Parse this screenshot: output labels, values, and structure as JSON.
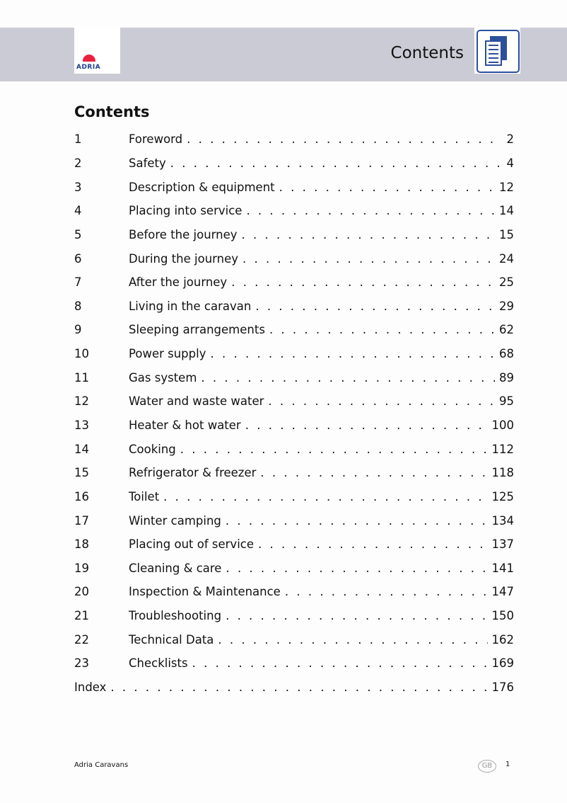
{
  "header": {
    "title": "Contents",
    "logo_text": "ADRIA",
    "icon": "document-pages-icon",
    "accent": "#2b4f9c",
    "band_color": "#cbcbd5"
  },
  "heading": "Contents",
  "toc": [
    {
      "num": "1",
      "title": "Foreword",
      "page": "2"
    },
    {
      "num": "2",
      "title": "Safety",
      "page": "4"
    },
    {
      "num": "3",
      "title": "Description & equipment",
      "page": "12"
    },
    {
      "num": "4",
      "title": "Placing into service",
      "page": "14"
    },
    {
      "num": "5",
      "title": "Before the journey",
      "page": "15"
    },
    {
      "num": "6",
      "title": "During the journey",
      "page": "24"
    },
    {
      "num": "7",
      "title": "After the journey",
      "page": "25"
    },
    {
      "num": "8",
      "title": "Living in the caravan",
      "page": "29"
    },
    {
      "num": "9",
      "title": "Sleeping arrangements",
      "page": "62"
    },
    {
      "num": "10",
      "title": "Power supply",
      "page": "68"
    },
    {
      "num": "11",
      "title": "Gas system",
      "page": "89"
    },
    {
      "num": "12",
      "title": "Water and waste water",
      "page": "95"
    },
    {
      "num": "13",
      "title": "Heater & hot water",
      "page": "100"
    },
    {
      "num": "14",
      "title": "Cooking",
      "page": "112"
    },
    {
      "num": "15",
      "title": "Refrigerator & freezer",
      "page": "118"
    },
    {
      "num": "16",
      "title": "Toilet",
      "page": "125"
    },
    {
      "num": "17",
      "title": "Winter camping",
      "page": "134"
    },
    {
      "num": "18",
      "title": "Placing out of service",
      "page": "137"
    },
    {
      "num": "19",
      "title": "Cleaning & care",
      "page": "141"
    },
    {
      "num": "20",
      "title": "Inspection & Maintenance",
      "page": "147"
    },
    {
      "num": "21",
      "title": "Troubleshooting",
      "page": "150"
    },
    {
      "num": "22",
      "title": "Technical Data",
      "page": "162"
    },
    {
      "num": "23",
      "title": "Checklists",
      "page": "169"
    }
  ],
  "index": {
    "title": "Index",
    "page": "176"
  },
  "footer": {
    "company": "Adria Caravans",
    "country": "GB",
    "page_number": "1"
  }
}
